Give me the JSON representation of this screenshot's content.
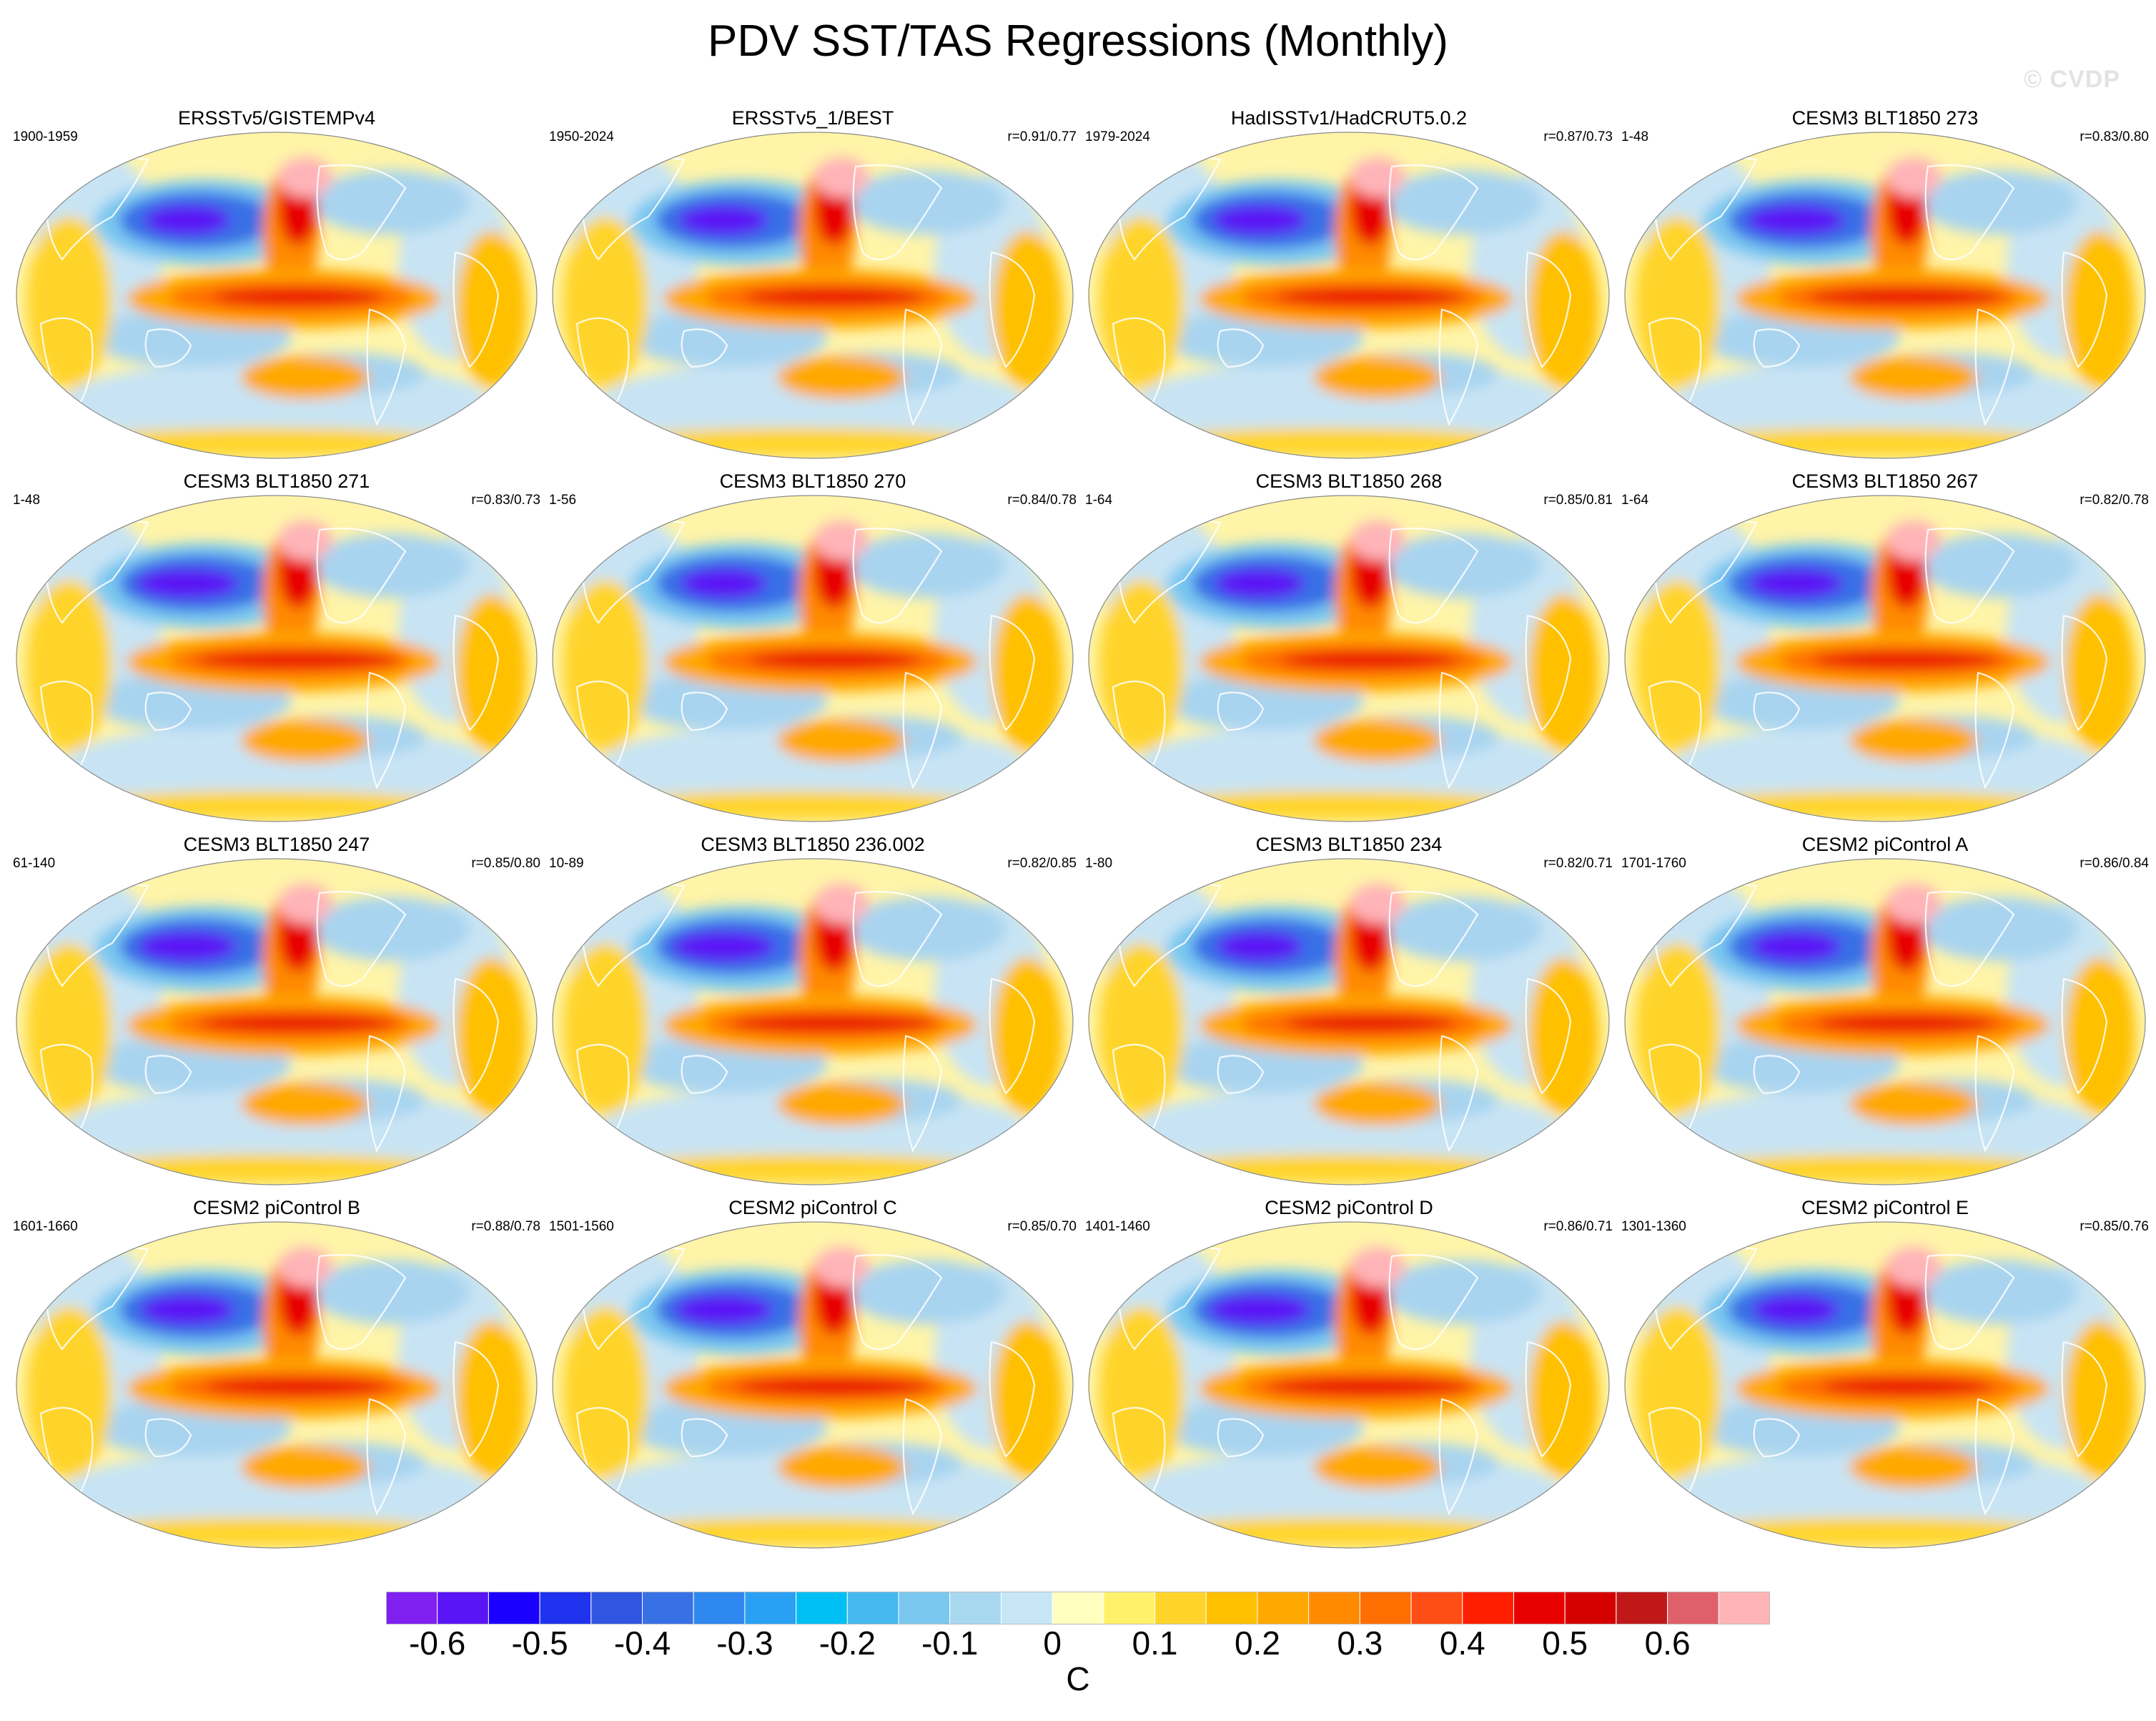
{
  "title": "PDV SST/TAS Regressions (Monthly)",
  "watermark": "© CVDP",
  "panels": [
    {
      "title": "ERSSTv5/GISTEMPv4",
      "period": "1900-1959",
      "corr": ""
    },
    {
      "title": "ERSSTv5_1/BEST",
      "period": "1950-2024",
      "corr": "r=0.91/0.77"
    },
    {
      "title": "HadISSTv1/HadCRUT5.0.2",
      "period": "1979-2024",
      "corr": "r=0.87/0.73"
    },
    {
      "title": "CESM3 BLT1850 273",
      "period": "1-48",
      "corr": "r=0.83/0.80"
    },
    {
      "title": "CESM3 BLT1850 271",
      "period": "1-48",
      "corr": "r=0.83/0.73"
    },
    {
      "title": "CESM3 BLT1850 270",
      "period": "1-56",
      "corr": "r=0.84/0.78"
    },
    {
      "title": "CESM3 BLT1850 268",
      "period": "1-64",
      "corr": "r=0.85/0.81"
    },
    {
      "title": "CESM3 BLT1850 267",
      "period": "1-64",
      "corr": "r=0.82/0.78"
    },
    {
      "title": "CESM3 BLT1850 247",
      "period": "61-140",
      "corr": "r=0.85/0.80"
    },
    {
      "title": "CESM3 BLT1850 236.002",
      "period": "10-89",
      "corr": "r=0.82/0.85"
    },
    {
      "title": "CESM3 BLT1850 234",
      "period": "1-80",
      "corr": "r=0.82/0.71"
    },
    {
      "title": "CESM2 piControl A",
      "period": "1701-1760",
      "corr": "r=0.86/0.84"
    },
    {
      "title": "CESM2 piControl B",
      "period": "1601-1660",
      "corr": "r=0.88/0.78"
    },
    {
      "title": "CESM2 piControl C",
      "period": "1501-1560",
      "corr": "r=0.85/0.70"
    },
    {
      "title": "CESM2 piControl D",
      "period": "1401-1460",
      "corr": "r=0.86/0.71"
    },
    {
      "title": "CESM2 piControl E",
      "period": "1301-1360",
      "corr": "r=0.85/0.76"
    }
  ],
  "colorbar": {
    "unit": "C",
    "colors": [
      "#7f1ff0",
      "#5a14f5",
      "#1a00ff",
      "#1f32ee",
      "#3055e0",
      "#3870e6",
      "#2e88f0",
      "#2aa0f5",
      "#00bff5",
      "#45b8ef",
      "#7ac8f0",
      "#a8d8f0",
      "#c6e6f6",
      "#ffffc0",
      "#fff26a",
      "#ffd42a",
      "#ffc000",
      "#ffa800",
      "#ff8a00",
      "#ff6e00",
      "#ff4d16",
      "#ff1e00",
      "#e80000",
      "#d40000",
      "#c01818",
      "#e0606a",
      "#ffb4b8"
    ],
    "labels": [
      "-0.6",
      "-0.5",
      "-0.4",
      "-0.3",
      "-0.2",
      "-0.1",
      "0",
      "0.1",
      "0.2",
      "0.3",
      "0.4",
      "0.5",
      "0.6"
    ],
    "label_boxes": [
      1,
      3,
      5,
      7,
      9,
      11,
      13,
      15,
      17,
      19,
      21,
      23,
      25
    ]
  }
}
